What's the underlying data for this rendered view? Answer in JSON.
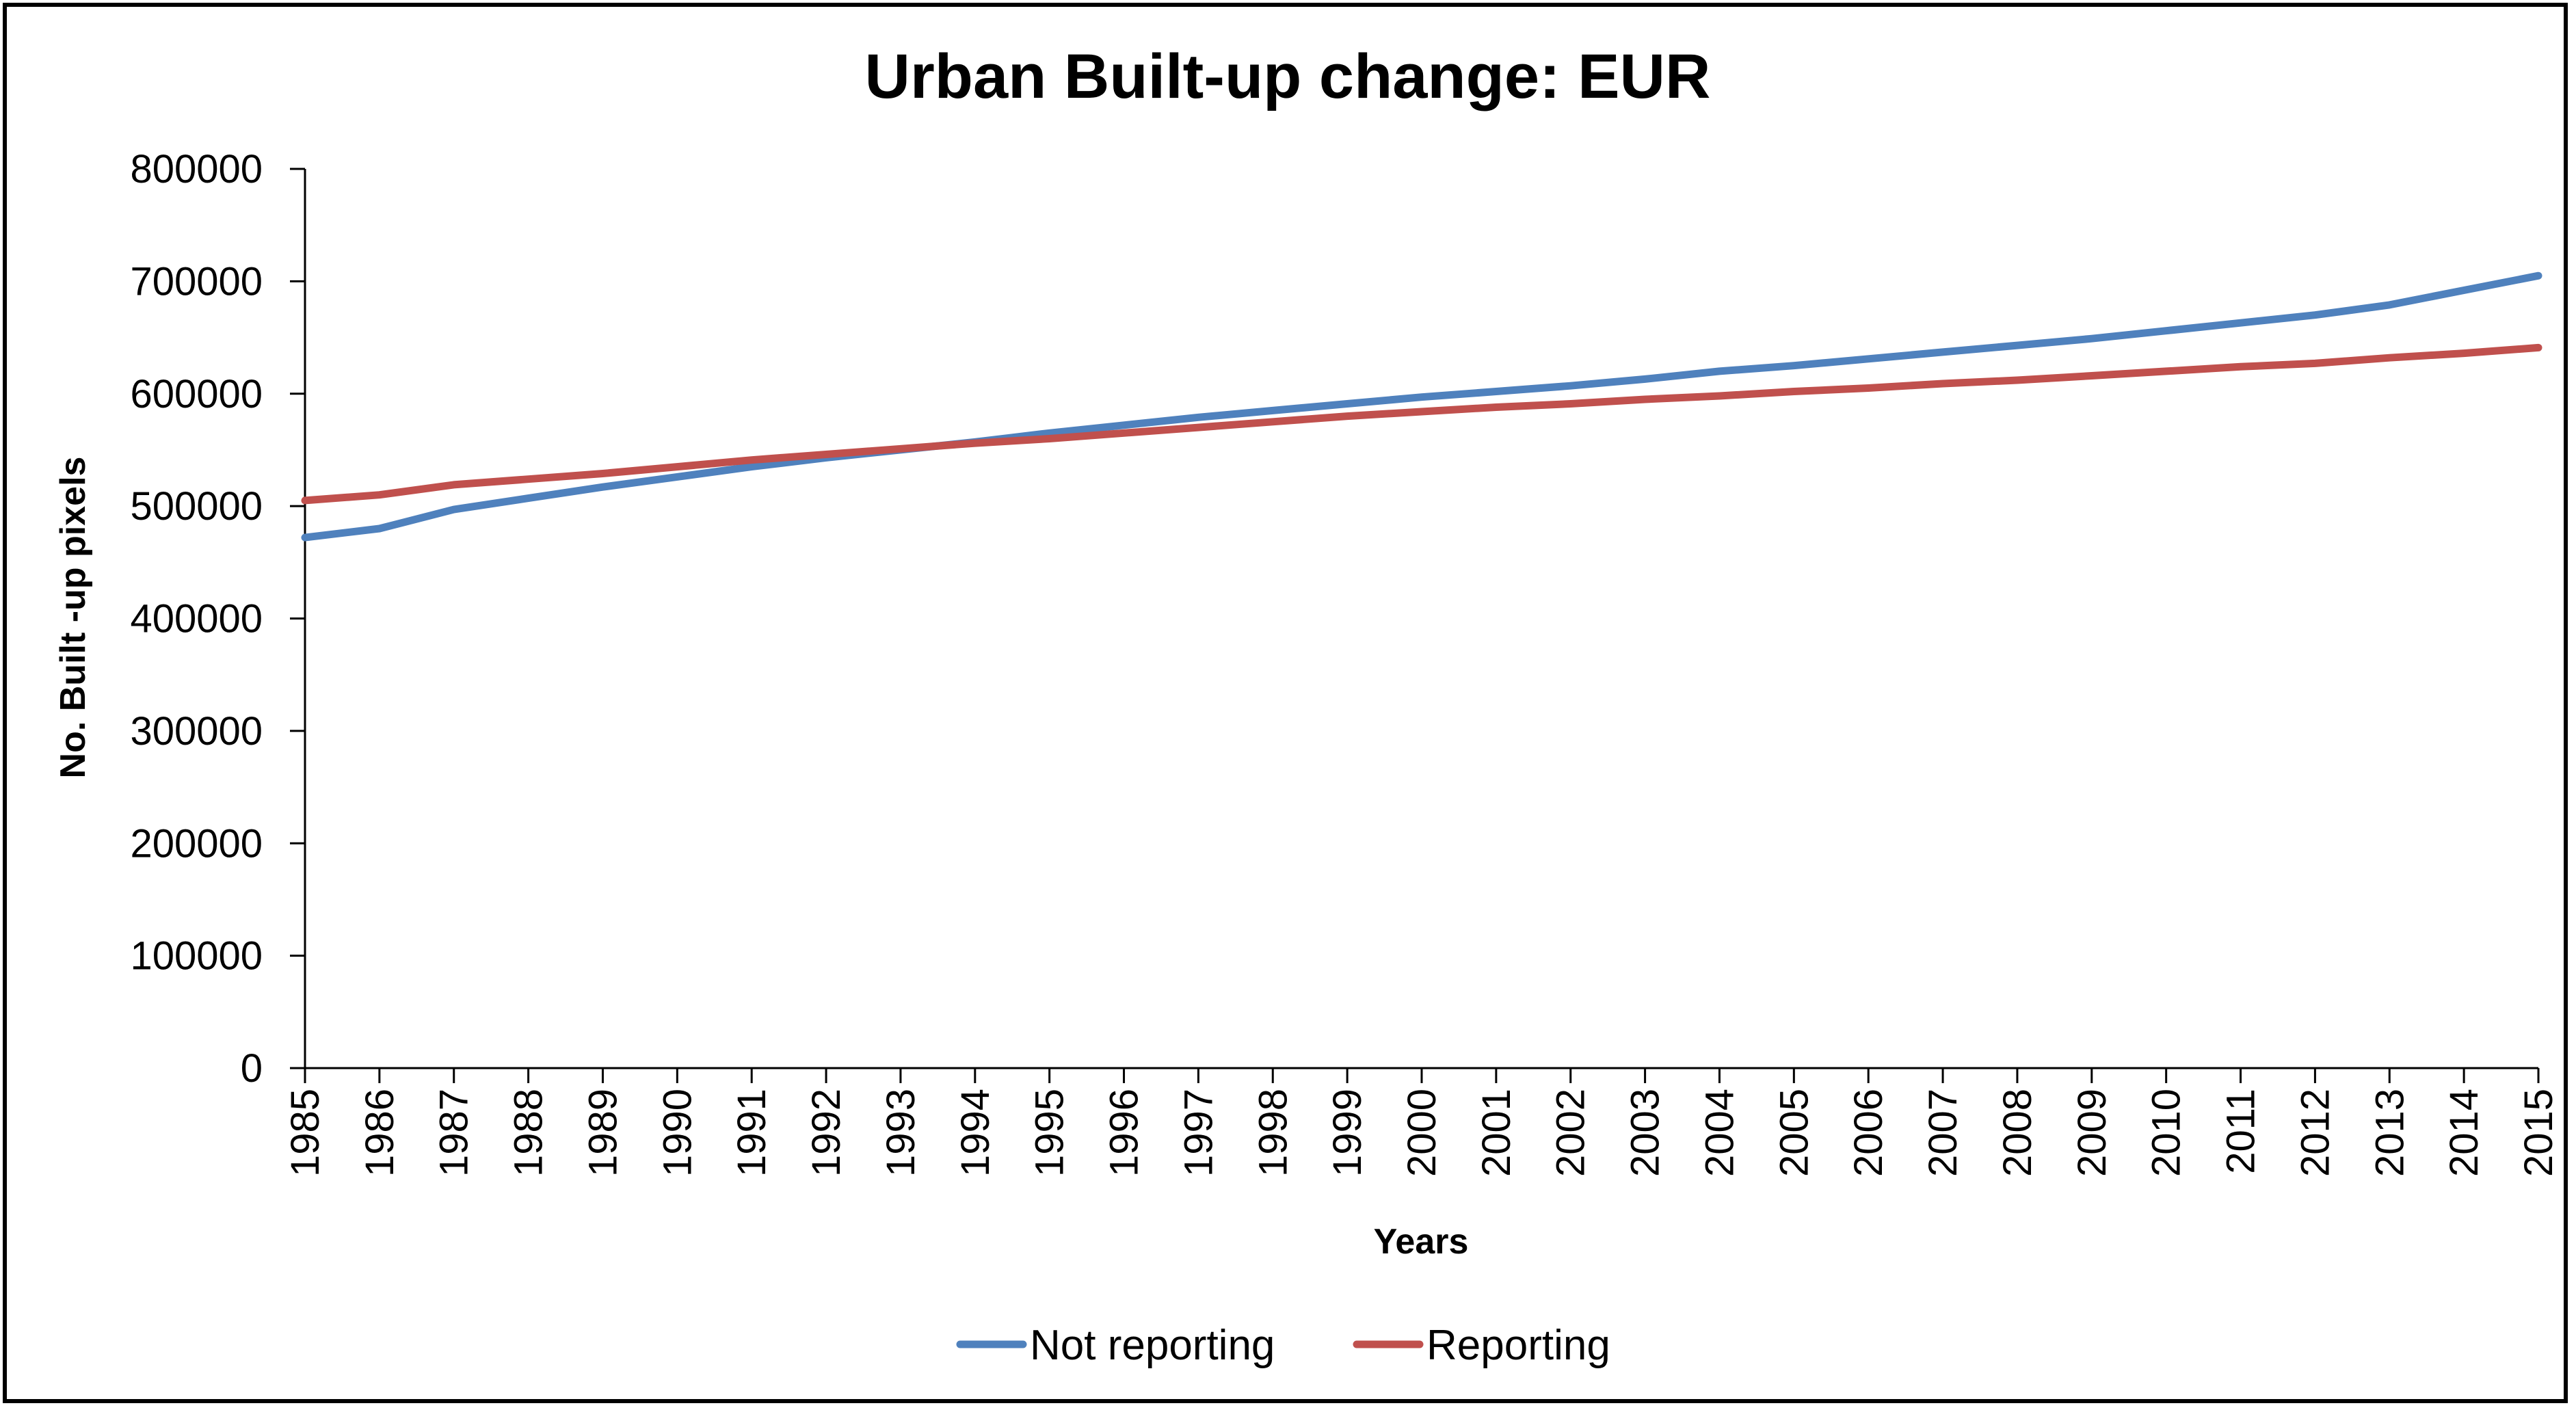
{
  "chart_data": {
    "type": "line",
    "title": "Urban Built-up change: EUR",
    "xlabel": "Years",
    "ylabel": "No. Built -up pixels",
    "x": [
      "1985",
      "1986",
      "1987",
      "1988",
      "1989",
      "1990",
      "1991",
      "1992",
      "1993",
      "1994",
      "1995",
      "1996",
      "1997",
      "1998",
      "1999",
      "2000",
      "2001",
      "2002",
      "2003",
      "2004",
      "2005",
      "2006",
      "2007",
      "2008",
      "2009",
      "2010",
      "2011",
      "2012",
      "2013",
      "2014",
      "2015"
    ],
    "y_ticks": [
      "0",
      "100000",
      "200000",
      "300000",
      "400000",
      "500000",
      "600000",
      "700000",
      "800000"
    ],
    "ylim": [
      0,
      800000
    ],
    "grid": false,
    "legend_position": "bottom",
    "series": [
      {
        "name": "Not reporting",
        "color": "#4f81bd",
        "values": [
          472000,
          480000,
          497000,
          507000,
          517000,
          526000,
          535000,
          543000,
          550000,
          557000,
          565000,
          572000,
          579000,
          585000,
          591000,
          597000,
          602000,
          607000,
          613000,
          620000,
          625000,
          631000,
          637000,
          643000,
          649000,
          656000,
          663000,
          670000,
          679000,
          692000,
          705000
        ]
      },
      {
        "name": "Reporting",
        "color": "#c0504d",
        "values": [
          505000,
          510000,
          519000,
          524000,
          529000,
          535000,
          541000,
          546000,
          551000,
          556000,
          560000,
          565000,
          570000,
          575000,
          580000,
          584000,
          588000,
          591000,
          595000,
          598000,
          602000,
          605000,
          609000,
          612000,
          616000,
          620000,
          624000,
          627000,
          632000,
          636000,
          641000
        ]
      }
    ]
  }
}
